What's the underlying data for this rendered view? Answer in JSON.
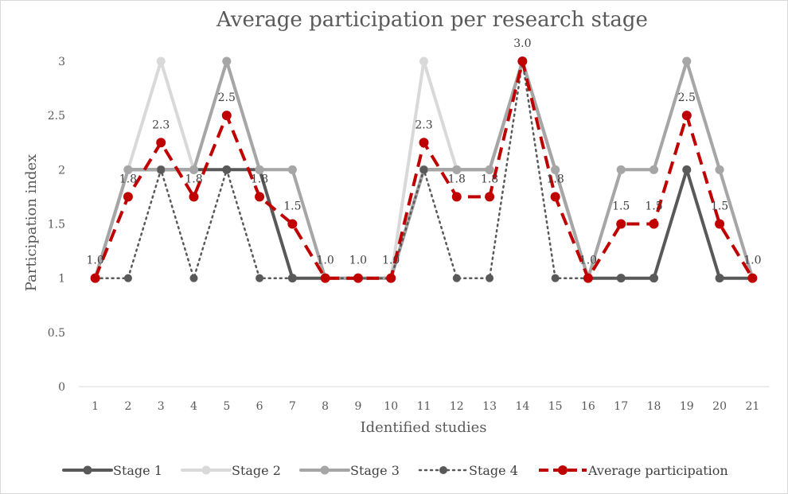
{
  "chart_data": {
    "type": "line",
    "title": "Average participation per research stage",
    "xlabel": "Identified studies",
    "ylabel": "Participation index",
    "categories": [
      "1",
      "2",
      "3",
      "4",
      "5",
      "6",
      "7",
      "8",
      "9",
      "10",
      "11",
      "12",
      "13",
      "14",
      "15",
      "16",
      "17",
      "18",
      "19",
      "20",
      "21"
    ],
    "ylim": [
      0,
      3
    ],
    "yticks": [
      "0",
      "0.5",
      "1",
      "1.5",
      "2",
      "2.5",
      "3"
    ],
    "grid": false,
    "legend_position": "bottom",
    "series": [
      {
        "name": "Stage 1",
        "color": "#595959",
        "style": "solid",
        "values": [
          1,
          2,
          2,
          2,
          2,
          2,
          1,
          1,
          1,
          1,
          2,
          2,
          2,
          3,
          2,
          1,
          1,
          1,
          2,
          1,
          1
        ]
      },
      {
        "name": "Stage 2",
        "color": "#d9d9d9",
        "style": "solid",
        "values": [
          1,
          2,
          3,
          2,
          3,
          2,
          2,
          1,
          1,
          1,
          3,
          2,
          2,
          3,
          2,
          1,
          2,
          2,
          3,
          2,
          1
        ]
      },
      {
        "name": "Stage 3",
        "color": "#a6a6a6",
        "style": "solid",
        "values": [
          1,
          2,
          2,
          2,
          3,
          2,
          2,
          1,
          1,
          1,
          2,
          2,
          2,
          3,
          2,
          1,
          2,
          2,
          3,
          2,
          1
        ]
      },
      {
        "name": "Stage 4",
        "color": "#595959",
        "style": "dotted",
        "values": [
          1,
          1,
          2,
          1,
          2,
          1,
          1,
          1,
          1,
          1,
          2,
          1,
          1,
          3,
          1,
          1,
          1,
          1,
          2,
          1,
          1
        ]
      },
      {
        "name": "Average participation",
        "color": "#c00000",
        "style": "dashed",
        "values": [
          1.0,
          1.75,
          2.25,
          1.75,
          2.5,
          1.75,
          1.5,
          1.0,
          1.0,
          1.0,
          2.25,
          1.75,
          1.75,
          3.0,
          1.75,
          1.0,
          1.5,
          1.5,
          2.5,
          1.5,
          1.0
        ],
        "data_labels": [
          "1.0",
          "1.8",
          "2.3",
          "1.8",
          "2.5",
          "1.8",
          "1.5",
          "1.0",
          "1.0",
          "1.0",
          "2.3",
          "1.8",
          "1.8",
          "3.0",
          "1.8",
          "1.0",
          "1.5",
          "1.5",
          "2.5",
          "1.5",
          "1.0"
        ]
      }
    ]
  }
}
